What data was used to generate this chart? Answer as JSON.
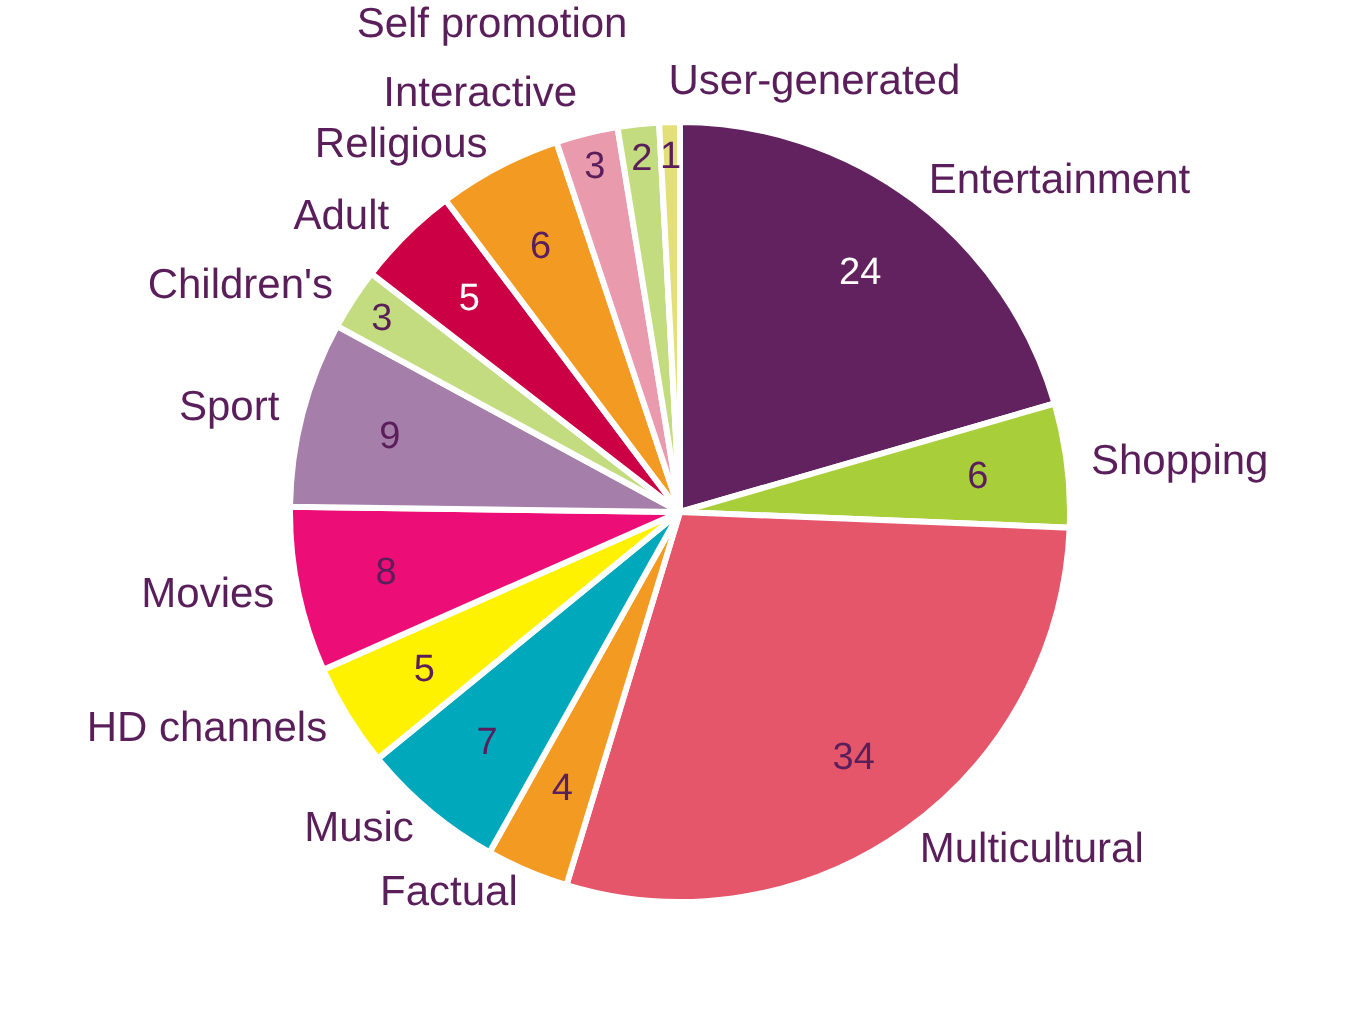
{
  "chart_data": {
    "type": "pie",
    "categories": [
      "Entertainment",
      "Shopping",
      "Multicultural",
      "Factual",
      "Music",
      "HD channels",
      "Movies",
      "Sport",
      "Children's",
      "Adult",
      "Religious",
      "Interactive",
      "Self promotion",
      "User-generated"
    ],
    "values": [
      24,
      6,
      34,
      4,
      7,
      5,
      8,
      9,
      3,
      5,
      6,
      3,
      2,
      1
    ],
    "colors": [
      "#62215f",
      "#a8cf3a",
      "#e5566a",
      "#f39a23",
      "#00a8bc",
      "#fff200",
      "#ec0e76",
      "#a57eaa",
      "#c3dc7f",
      "#cc0044",
      "#f39a23",
      "#e99aad",
      "#c3dc7f",
      "#e3e07a"
    ],
    "data_labels": true,
    "legend": false
  }
}
